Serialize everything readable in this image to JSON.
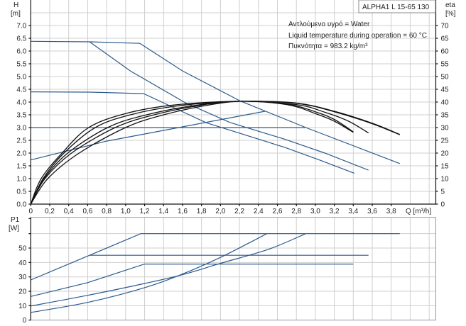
{
  "chart_data": [
    {
      "type": "line",
      "title": "ALPHA1 L 15-65 130",
      "annotations": [
        "Αντλούμενο υγρό = Water",
        "Liquid temperature during operation = 60 °C",
        "Πυκνότητα = 983.2 kg/m³"
      ],
      "xlabel": "Q [m³/h]",
      "ylabel": "H",
      "ylabel_unit": "[m]",
      "y2label": "eta",
      "y2label_unit": "[%]",
      "xlim": [
        0,
        4.27
      ],
      "ylim": [
        0,
        8
      ],
      "y2lim": [
        0,
        80
      ],
      "grid": true,
      "x_ticks": [
        "0",
        "0,2",
        "0,4",
        "0,6",
        "0,8",
        "1,0",
        "1,2",
        "1,4",
        "1,6",
        "1,8",
        "2,0",
        "2,2",
        "2,4",
        "2,6",
        "2,8",
        "3,0",
        "3,2",
        "3,4",
        "3,6",
        "3,8"
      ],
      "y_ticks": [
        "0.0",
        "0.5",
        "1.0",
        "1.5",
        "2.0",
        "2.5",
        "3.0",
        "3.5",
        "4.0",
        "4.5",
        "5.0",
        "5.5",
        "6.0",
        "6.5",
        "7.0"
      ],
      "y2_ticks": [
        "0",
        "5",
        "10",
        "15",
        "20",
        "25",
        "30",
        "35",
        "40",
        "45",
        "50",
        "55",
        "60",
        "65",
        "70"
      ],
      "colors": {
        "control_curves": "#2b5a8c",
        "pump_curves": "#111111"
      },
      "series": [
        {
          "kind": "control",
          "points": [
            [
              0,
              6.38
            ],
            [
              0.62,
              6.36
            ],
            [
              1.15,
              6.3
            ],
            [
              1.6,
              5.22
            ],
            [
              2.21,
              4.04
            ],
            [
              2.9,
              3.0
            ],
            [
              3.89,
              1.59
            ]
          ]
        },
        {
          "kind": "control",
          "points": [
            [
              0.62,
              6.36
            ],
            [
              1.05,
              5.22
            ],
            [
              1.63,
              3.97
            ],
            [
              2.1,
              3.2
            ],
            [
              2.68,
              2.54
            ],
            [
              3.1,
              2.0
            ],
            [
              3.56,
              1.33
            ]
          ]
        },
        {
          "kind": "control",
          "points": [
            [
              0,
              4.4
            ],
            [
              0.62,
              4.39
            ],
            [
              1.19,
              4.33
            ],
            [
              1.85,
              3.19
            ],
            [
              2.68,
              2.22
            ],
            [
              3.05,
              1.72
            ],
            [
              3.41,
              1.21
            ]
          ]
        },
        {
          "kind": "control",
          "points": [
            [
              0,
              3.0
            ],
            [
              2.9,
              3.0
            ]
          ]
        },
        {
          "kind": "control",
          "points": [
            [
              0,
              1.73
            ],
            [
              0.8,
              2.47
            ],
            [
              1.56,
              3.0
            ],
            [
              2.47,
              3.64
            ]
          ]
        },
        {
          "kind": "pump",
          "points": [
            [
              0,
              0
            ],
            [
              0.11,
              1.0
            ],
            [
              0.33,
              2.0
            ],
            [
              0.61,
              3.0
            ],
            [
              1.0,
              3.55
            ],
            [
              1.5,
              3.88
            ],
            [
              2.2,
              4.03
            ],
            [
              2.7,
              3.9
            ],
            [
              3.0,
              3.55
            ],
            [
              3.2,
              3.25
            ],
            [
              3.4,
              2.81
            ]
          ]
        },
        {
          "kind": "pump",
          "points": [
            [
              0,
              0
            ],
            [
              0.13,
              1.0
            ],
            [
              0.35,
              2.0
            ],
            [
              0.68,
              3.0
            ],
            [
              1.05,
              3.5
            ],
            [
              1.55,
              3.85
            ],
            [
              2.2,
              4.03
            ],
            [
              2.7,
              3.92
            ],
            [
              3.0,
              3.62
            ],
            [
              3.2,
              3.32
            ],
            [
              3.4,
              2.83
            ]
          ]
        },
        {
          "kind": "pump",
          "points": [
            [
              0,
              0
            ],
            [
              0.14,
              1.0
            ],
            [
              0.39,
              2.0
            ],
            [
              0.81,
              3.0
            ],
            [
              1.2,
              3.48
            ],
            [
              1.7,
              3.85
            ],
            [
              2.2,
              4.03
            ],
            [
              2.8,
              3.9
            ],
            [
              3.1,
              3.6
            ],
            [
              3.35,
              3.25
            ],
            [
              3.56,
              2.79
            ]
          ]
        },
        {
          "kind": "pump",
          "points": [
            [
              0,
              0
            ],
            [
              0.15,
              1.0
            ],
            [
              0.43,
              2.0
            ],
            [
              0.89,
              3.0
            ],
            [
              1.3,
              3.5
            ],
            [
              1.8,
              3.88
            ],
            [
              2.2,
              4.03
            ],
            [
              2.8,
              3.95
            ],
            [
              3.2,
              3.62
            ],
            [
              3.6,
              3.15
            ],
            [
              3.89,
              2.72
            ]
          ]
        },
        {
          "kind": "pump",
          "points": [
            [
              0,
              0
            ],
            [
              0.18,
              1.0
            ],
            [
              0.51,
              2.0
            ],
            [
              1.0,
              3.0
            ],
            [
              1.4,
              3.5
            ],
            [
              1.9,
              3.9
            ],
            [
              2.25,
              4.03
            ],
            [
              2.8,
              3.96
            ],
            [
              3.2,
              3.64
            ],
            [
              3.6,
              3.17
            ],
            [
              3.89,
              2.73
            ]
          ]
        }
      ]
    },
    {
      "type": "line",
      "xlabel": "",
      "ylabel": "P1",
      "ylabel_unit": "[W]",
      "xlim": [
        0,
        4.27
      ],
      "ylim": [
        0,
        71.3
      ],
      "grid": true,
      "y_ticks": [
        "0",
        "10",
        "20",
        "30",
        "40",
        "50"
      ],
      "series": [
        {
          "points": [
            [
              0,
              27.9
            ],
            [
              0.62,
              45
            ],
            [
              1.16,
              60
            ],
            [
              3.89,
              60
            ]
          ]
        },
        {
          "points": [
            [
              0.62,
              45
            ],
            [
              3.56,
              45
            ]
          ]
        },
        {
          "points": [
            [
              0,
              16.4
            ],
            [
              0.6,
              26
            ],
            [
              1.2,
              38.9
            ],
            [
              3.4,
              38.9
            ]
          ]
        },
        {
          "points": [
            [
              0,
              9.8
            ],
            [
              0.6,
              17.2
            ],
            [
              1.2,
              25.4
            ],
            [
              1.6,
              31.5
            ],
            [
              2.0,
              39.4
            ],
            [
              2.5,
              49
            ],
            [
              2.9,
              60
            ]
          ]
        },
        {
          "points": [
            [
              0,
              5.3
            ],
            [
              0.6,
              12.3
            ],
            [
              1.2,
              22.5
            ],
            [
              1.6,
              32
            ],
            [
              2.0,
              43.5
            ],
            [
              2.49,
              60
            ]
          ]
        }
      ]
    }
  ]
}
